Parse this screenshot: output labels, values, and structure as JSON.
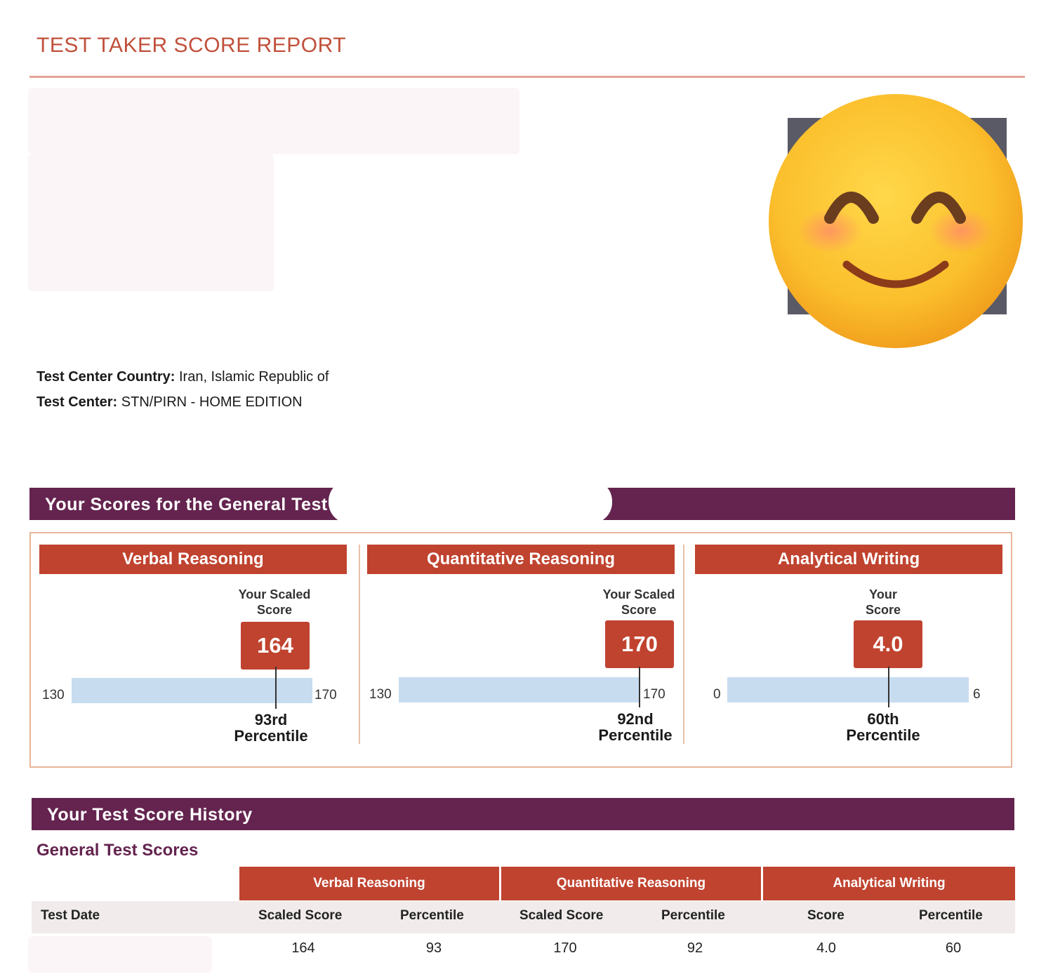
{
  "report": {
    "title": "TEST TAKER SCORE REPORT"
  },
  "test_center": {
    "country_label": "Test Center Country:",
    "country_value": "Iran, Islamic Republic of",
    "center_label": "Test Center:",
    "center_value": "STN/PIRN - HOME EDITION"
  },
  "scores": {
    "heading": "Your Scores for the General Test",
    "sections": [
      {
        "name": "Verbal Reasoning",
        "caption_line1": "Your Scaled",
        "caption_line2": "Score",
        "score": "164",
        "score_value": 164,
        "min": "130",
        "max": "170",
        "min_value": 130,
        "max_value": 170,
        "percentile_line1": "93rd",
        "percentile_line2": "Percentile"
      },
      {
        "name": "Quantitative Reasoning",
        "caption_line1": "Your Scaled",
        "caption_line2": "Score",
        "score": "170",
        "score_value": 170,
        "min": "130",
        "max": "170",
        "min_value": 130,
        "max_value": 170,
        "percentile_line1": "92nd",
        "percentile_line2": "Percentile"
      },
      {
        "name": "Analytical Writing",
        "caption_line1": "Your",
        "caption_line2": "Score",
        "score": "4.0",
        "score_value": 4.0,
        "min": "0",
        "max": "6",
        "min_value": 0,
        "max_value": 6,
        "percentile_line1": "60th",
        "percentile_line2": "Percentile"
      }
    ]
  },
  "history": {
    "heading": "Your Test Score History",
    "subheading": "General Test Scores",
    "section_headers": [
      "Verbal Reasoning",
      "Quantitative Reasoning",
      "Analytical Writing"
    ],
    "columns": [
      "Test Date",
      "Scaled Score",
      "Percentile",
      "Scaled Score",
      "Percentile",
      "Score",
      "Percentile"
    ],
    "row": [
      "",
      "164",
      "93",
      "170",
      "92",
      "4.0",
      "60"
    ]
  },
  "icons": {
    "photo": "smiling-face-icon"
  },
  "colors": {
    "band": "#64244f",
    "accent": "#c0432f",
    "bar": "#c7dcef",
    "title": "#c0503b"
  }
}
